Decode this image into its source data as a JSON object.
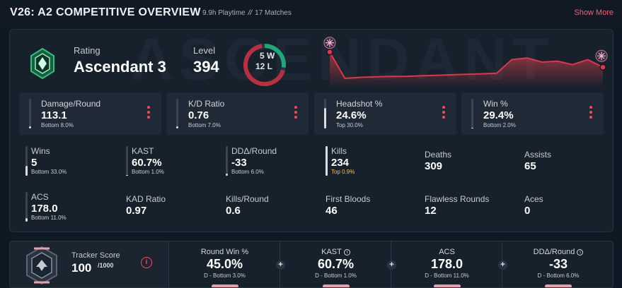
{
  "header": {
    "title": "V26: A2 COMPETITIVE OVERVIEW",
    "playtime": "9.9h Playtime",
    "separator": "//",
    "matches": "17 Matches",
    "show_more": "Show More"
  },
  "overview": {
    "watermark": "ASCENDANT",
    "rating_label": "Rating",
    "rating_value": "Ascendant 3",
    "level_label": "Level",
    "level_value": "394",
    "wins_text": "5 W",
    "losses_text": "12 L",
    "wins": 5,
    "losses": 12
  },
  "highlight_cards": [
    {
      "label": "Damage/Round",
      "value": "113.1",
      "sub": "Bottom 8.0%",
      "fill": 0.08
    },
    {
      "label": "K/D Ratio",
      "value": "0.76",
      "sub": "Bottom 7.0%",
      "fill": 0.07
    },
    {
      "label": "Headshot %",
      "value": "24.6%",
      "sub": "Top 30.0%",
      "fill": 0.7
    },
    {
      "label": "Win %",
      "value": "29.4%",
      "sub": "Bottom 2.0%",
      "fill": 0.02
    }
  ],
  "stats": [
    {
      "label": "Wins",
      "value": "5",
      "sub": "Bottom 33.0%",
      "fill": 0.33
    },
    {
      "label": "KAST",
      "value": "60.7%",
      "sub": "Bottom 1.0%",
      "fill": 0.01
    },
    {
      "label": "DDΔ/Round",
      "value": "-33",
      "sub": "Bottom 6.0%",
      "fill": 0.06
    },
    {
      "label": "Kills",
      "value": "234",
      "sub": "Top 0.9%",
      "fill": 0.99
    },
    {
      "label": "Deaths",
      "value": "309"
    },
    {
      "label": "Assists",
      "value": "65"
    },
    {
      "label": "ACS",
      "value": "178.0",
      "sub": "Bottom 11.0%",
      "fill": 0.11
    },
    {
      "label": "KAD Ratio",
      "value": "0.97"
    },
    {
      "label": "Kills/Round",
      "value": "0.6"
    },
    {
      "label": "First Bloods",
      "value": "46"
    },
    {
      "label": "Flawless Rounds",
      "value": "12"
    },
    {
      "label": "Aces",
      "value": "0"
    }
  ],
  "tracker": {
    "label": "Tracker Score",
    "value": "100",
    "max": "/1000",
    "info_icon": "info-icon"
  },
  "bottom_stats": [
    {
      "label": "Round Win %",
      "value": "45.0%",
      "sub": "D - Bottom 3.0%",
      "info": false
    },
    {
      "label": "KAST",
      "value": "60.7%",
      "sub": "D - Bottom 1.0%",
      "info": true
    },
    {
      "label": "ACS",
      "value": "178.0",
      "sub": "D - Bottom 11.0%",
      "info": false
    },
    {
      "label": "DDΔ/Round",
      "value": "-33",
      "sub": "D - Bottom 6.0%",
      "info": true
    }
  ],
  "colors": {
    "accent": "#ff4655",
    "win_ring": "#1fa67a",
    "loss_ring": "#b8303d",
    "background": "#0f1923",
    "panel": "#17212c"
  },
  "rating_trend": [
    0.3,
    0.82,
    0.8,
    0.79,
    0.78,
    0.78,
    0.77,
    0.76,
    0.75,
    0.74,
    0.73,
    0.72,
    0.45,
    0.42,
    0.5,
    0.48,
    0.55,
    0.45,
    0.6
  ]
}
